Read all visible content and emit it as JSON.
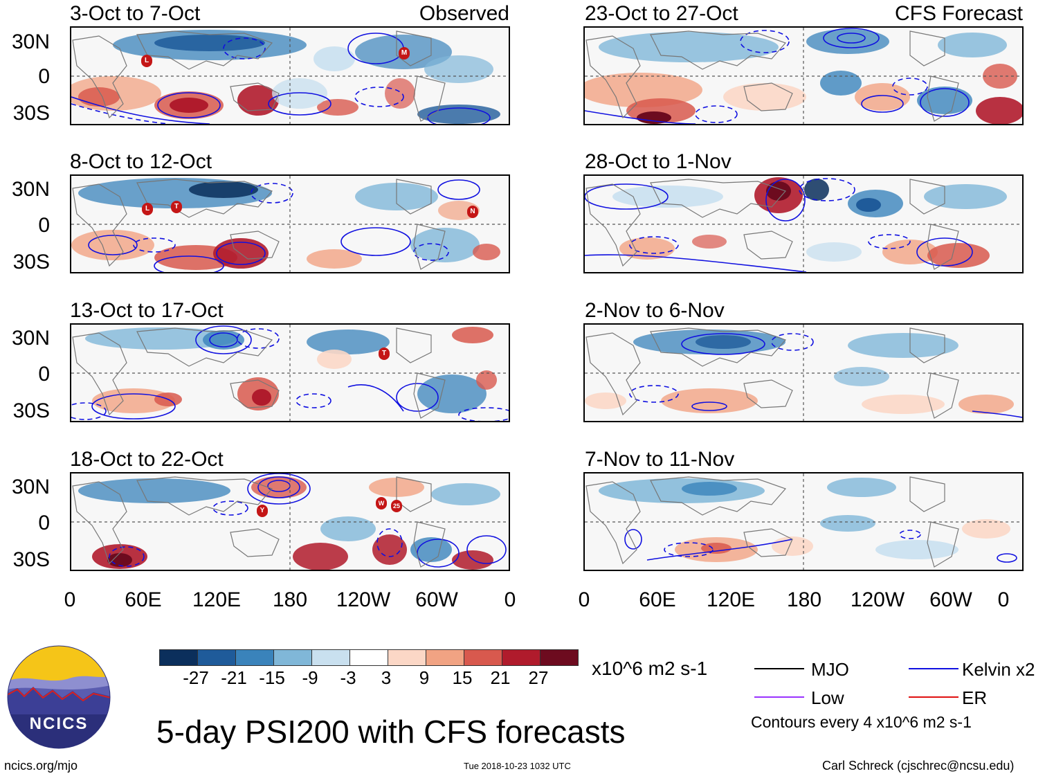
{
  "panels": [
    {
      "title": "3-Oct to 7-Oct",
      "tag": "Observed",
      "storms": [
        "L",
        "M"
      ]
    },
    {
      "title": "23-Oct to 27-Oct",
      "tag": "CFS Forecast",
      "storms": []
    },
    {
      "title": "8-Oct to 12-Oct",
      "tag": "",
      "storms": [
        "L",
        "T",
        "N"
      ]
    },
    {
      "title": "28-Oct to 1-Nov",
      "tag": "",
      "storms": []
    },
    {
      "title": "13-Oct to 17-Oct",
      "tag": "",
      "storms": [
        "T"
      ]
    },
    {
      "title": "2-Nov to 6-Nov",
      "tag": "",
      "storms": []
    },
    {
      "title": "18-Oct to 22-Oct",
      "tag": "",
      "storms": [
        "Y",
        "W",
        "25"
      ]
    },
    {
      "title": "7-Nov to 11-Nov",
      "tag": "",
      "storms": []
    }
  ],
  "axes": {
    "lat_labels": [
      "30N",
      "0",
      "30S"
    ],
    "lon_labels": [
      "0",
      "60E",
      "120E",
      "180",
      "120W",
      "60W",
      "0"
    ]
  },
  "colorbar": {
    "colors": [
      "#0b2f5c",
      "#1f5b9a",
      "#3a83bb",
      "#80b7d8",
      "#c9e0ef",
      "#ffffff",
      "#fbd7c6",
      "#f1a383",
      "#d8594e",
      "#b01b2c",
      "#6d0b1f"
    ],
    "ticks": [
      "-27",
      "-21",
      "-15",
      "-9",
      "-3",
      "3",
      "9",
      "15",
      "21",
      "27"
    ],
    "units": "x10^6 m2 s-1"
  },
  "legend": {
    "items": [
      {
        "label": "MJO",
        "color": "#000000"
      },
      {
        "label": "Kelvin x2",
        "color": "#1010e0"
      },
      {
        "label": "Low",
        "color": "#9933ff"
      },
      {
        "label": "ER",
        "color": "#e01010"
      }
    ],
    "note": "Contours every 4 x10^6 m2 s-1"
  },
  "title": "5-day PSI200 with CFS forecasts",
  "logo_text": "NCICS",
  "footer": {
    "left": "ncics.org/mjo",
    "center": "Tue 2018-10-23 1032 UTC",
    "right": "Carl Schreck (cjschrec@ncsu.edu)"
  }
}
